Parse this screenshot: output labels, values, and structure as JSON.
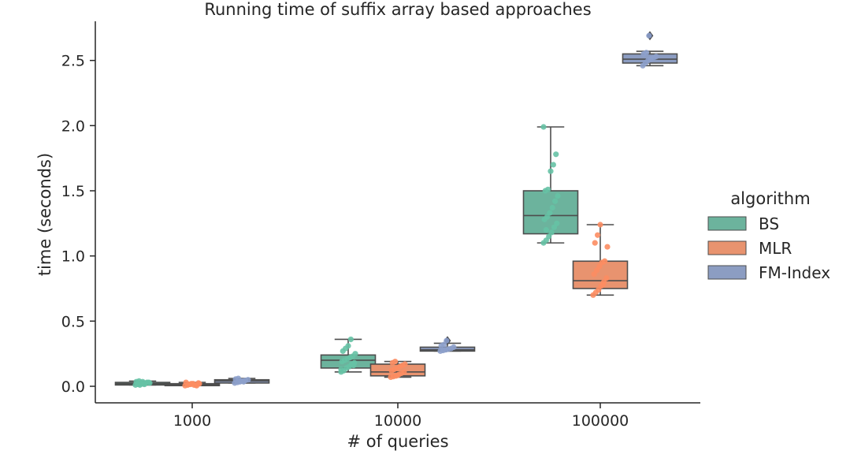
{
  "chart_data": {
    "type": "box",
    "title": "Running time of suffix array based approaches",
    "xlabel": "# of queries",
    "ylabel": "time (seconds)",
    "categories": [
      "1000",
      "10000",
      "100000"
    ],
    "ylim": [
      -0.12,
      2.82
    ],
    "yticks": [
      0.0,
      0.5,
      1.0,
      1.5,
      2.0,
      2.5
    ],
    "ytick_labels": [
      "0.0",
      "0.5",
      "1.0",
      "1.5",
      "2.0",
      "2.5"
    ],
    "grid": false,
    "legend": {
      "title": "algorithm",
      "placement": "right"
    },
    "series": [
      {
        "name": "BS",
        "color": "#66c2a5",
        "box_fill": "#6cb39d",
        "boxes": [
          {
            "min": 0.01,
            "q1": 0.01,
            "median": 0.02,
            "q3": 0.03,
            "max": 0.04,
            "outliers": []
          },
          {
            "min": 0.11,
            "q1": 0.14,
            "median": 0.2,
            "q3": 0.24,
            "max": 0.36,
            "outliers": []
          },
          {
            "min": 1.1,
            "q1": 1.17,
            "median": 1.31,
            "q3": 1.5,
            "max": 1.99,
            "outliers": []
          }
        ],
        "points": [
          [
            0.01,
            0.015,
            0.02,
            0.02,
            0.025,
            0.03,
            0.035,
            0.04,
            0.02,
            0.015,
            0.03,
            0.025,
            0.02,
            0.01,
            0.035
          ],
          [
            0.11,
            0.12,
            0.14,
            0.15,
            0.17,
            0.18,
            0.19,
            0.2,
            0.21,
            0.22,
            0.23,
            0.25,
            0.27,
            0.29,
            0.31,
            0.36,
            0.16,
            0.13
          ],
          [
            1.1,
            1.12,
            1.15,
            1.18,
            1.22,
            1.25,
            1.28,
            1.3,
            1.33,
            1.37,
            1.42,
            1.46,
            1.5,
            1.51,
            1.65,
            1.7,
            1.78,
            1.99,
            1.2
          ]
        ]
      },
      {
        "name": "MLR",
        "color": "#fc8d62",
        "box_fill": "#e8936f",
        "boxes": [
          {
            "min": 0.005,
            "q1": 0.005,
            "median": 0.01,
            "q3": 0.02,
            "max": 0.03,
            "outliers": []
          },
          {
            "min": 0.07,
            "q1": 0.08,
            "median": 0.11,
            "q3": 0.17,
            "max": 0.19,
            "outliers": []
          },
          {
            "min": 0.7,
            "q1": 0.75,
            "median": 0.81,
            "q3": 0.96,
            "max": 1.24,
            "outliers": []
          }
        ],
        "points": [
          [
            0.005,
            0.01,
            0.015,
            0.02,
            0.01,
            0.025,
            0.03,
            0.015,
            0.02,
            0.01,
            0.005,
            0.02
          ],
          [
            0.07,
            0.075,
            0.08,
            0.09,
            0.1,
            0.11,
            0.12,
            0.13,
            0.14,
            0.15,
            0.16,
            0.17,
            0.18,
            0.19,
            0.085
          ],
          [
            0.7,
            0.72,
            0.74,
            0.77,
            0.8,
            0.83,
            0.86,
            0.89,
            0.92,
            0.95,
            0.96,
            1.07,
            1.1,
            1.16,
            1.24,
            0.78
          ]
        ]
      },
      {
        "name": "FM-Index",
        "color": "#8da0cb",
        "box_fill": "#8c9dc2",
        "boxes": [
          {
            "min": 0.025,
            "q1": 0.025,
            "median": 0.04,
            "q3": 0.05,
            "max": 0.06,
            "outliers": []
          },
          {
            "min": 0.27,
            "q1": 0.27,
            "median": 0.28,
            "q3": 0.3,
            "max": 0.33,
            "outliers": [
              0.35
            ]
          },
          {
            "min": 2.46,
            "q1": 2.48,
            "median": 2.51,
            "q3": 2.55,
            "max": 2.57,
            "outliers": [
              2.69
            ]
          }
        ],
        "points": [
          [
            0.025,
            0.03,
            0.035,
            0.04,
            0.045,
            0.05,
            0.055,
            0.06,
            0.04,
            0.035
          ],
          [
            0.27,
            0.275,
            0.28,
            0.285,
            0.29,
            0.3,
            0.31,
            0.32,
            0.35
          ],
          [
            2.46,
            2.48,
            2.5,
            2.51,
            2.52,
            2.53,
            2.55,
            2.56,
            2.69
          ]
        ]
      }
    ]
  }
}
